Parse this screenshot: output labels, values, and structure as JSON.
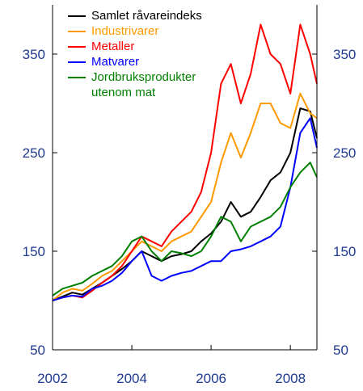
{
  "chart_data": {
    "type": "line",
    "x": [
      2002,
      2002.25,
      2002.5,
      2002.75,
      2003,
      2003.25,
      2003.5,
      2003.75,
      2004,
      2004.25,
      2004.5,
      2004.75,
      2005,
      2005.25,
      2005.5,
      2005.75,
      2006,
      2006.25,
      2006.5,
      2006.75,
      2007,
      2007.25,
      2007.5,
      2007.75,
      2008,
      2008.25,
      2008.5,
      2008.67
    ],
    "series": [
      {
        "name": "Samlet råvareindeks",
        "color": "#000000",
        "values": [
          100,
          104,
          108,
          106,
          112,
          118,
          125,
          132,
          140,
          150,
          145,
          140,
          145,
          147,
          150,
          160,
          168,
          180,
          200,
          185,
          190,
          205,
          222,
          230,
          250,
          295,
          292,
          265
        ]
      },
      {
        "name": "Industrivarer",
        "color": "#ff9900",
        "values": [
          100,
          108,
          112,
          110,
          117,
          125,
          130,
          140,
          150,
          160,
          155,
          150,
          160,
          165,
          170,
          185,
          200,
          240,
          270,
          245,
          270,
          300,
          300,
          280,
          275,
          310,
          290,
          285
        ]
      },
      {
        "name": "Metaller",
        "color": "#ff0000",
        "values": [
          100,
          103,
          105,
          103,
          110,
          118,
          125,
          135,
          150,
          165,
          160,
          155,
          170,
          180,
          190,
          210,
          250,
          320,
          340,
          300,
          330,
          380,
          350,
          340,
          310,
          380,
          350,
          320
        ]
      },
      {
        "name": "Matvarer",
        "color": "#0000ff",
        "values": [
          100,
          103,
          105,
          104,
          112,
          115,
          120,
          128,
          140,
          150,
          125,
          120,
          125,
          128,
          130,
          135,
          140,
          140,
          150,
          152,
          155,
          160,
          165,
          175,
          215,
          270,
          285,
          255
        ]
      },
      {
        "name": "Jordbruksprodukter utenom mat",
        "color": "#008000",
        "values": [
          105,
          112,
          115,
          118,
          125,
          130,
          135,
          145,
          160,
          165,
          150,
          140,
          150,
          148,
          145,
          150,
          165,
          185,
          180,
          160,
          175,
          180,
          185,
          195,
          215,
          230,
          240,
          225
        ]
      }
    ],
    "xlim": [
      2002,
      2008.67
    ],
    "xticks": [
      2002,
      2004,
      2006,
      2008
    ],
    "ylim": [
      50,
      400
    ],
    "yticks": [
      50,
      150,
      250,
      350
    ],
    "y2lim": [
      50,
      400
    ],
    "y2ticks": [
      50,
      150,
      250,
      350
    ],
    "legend": "upper left"
  }
}
